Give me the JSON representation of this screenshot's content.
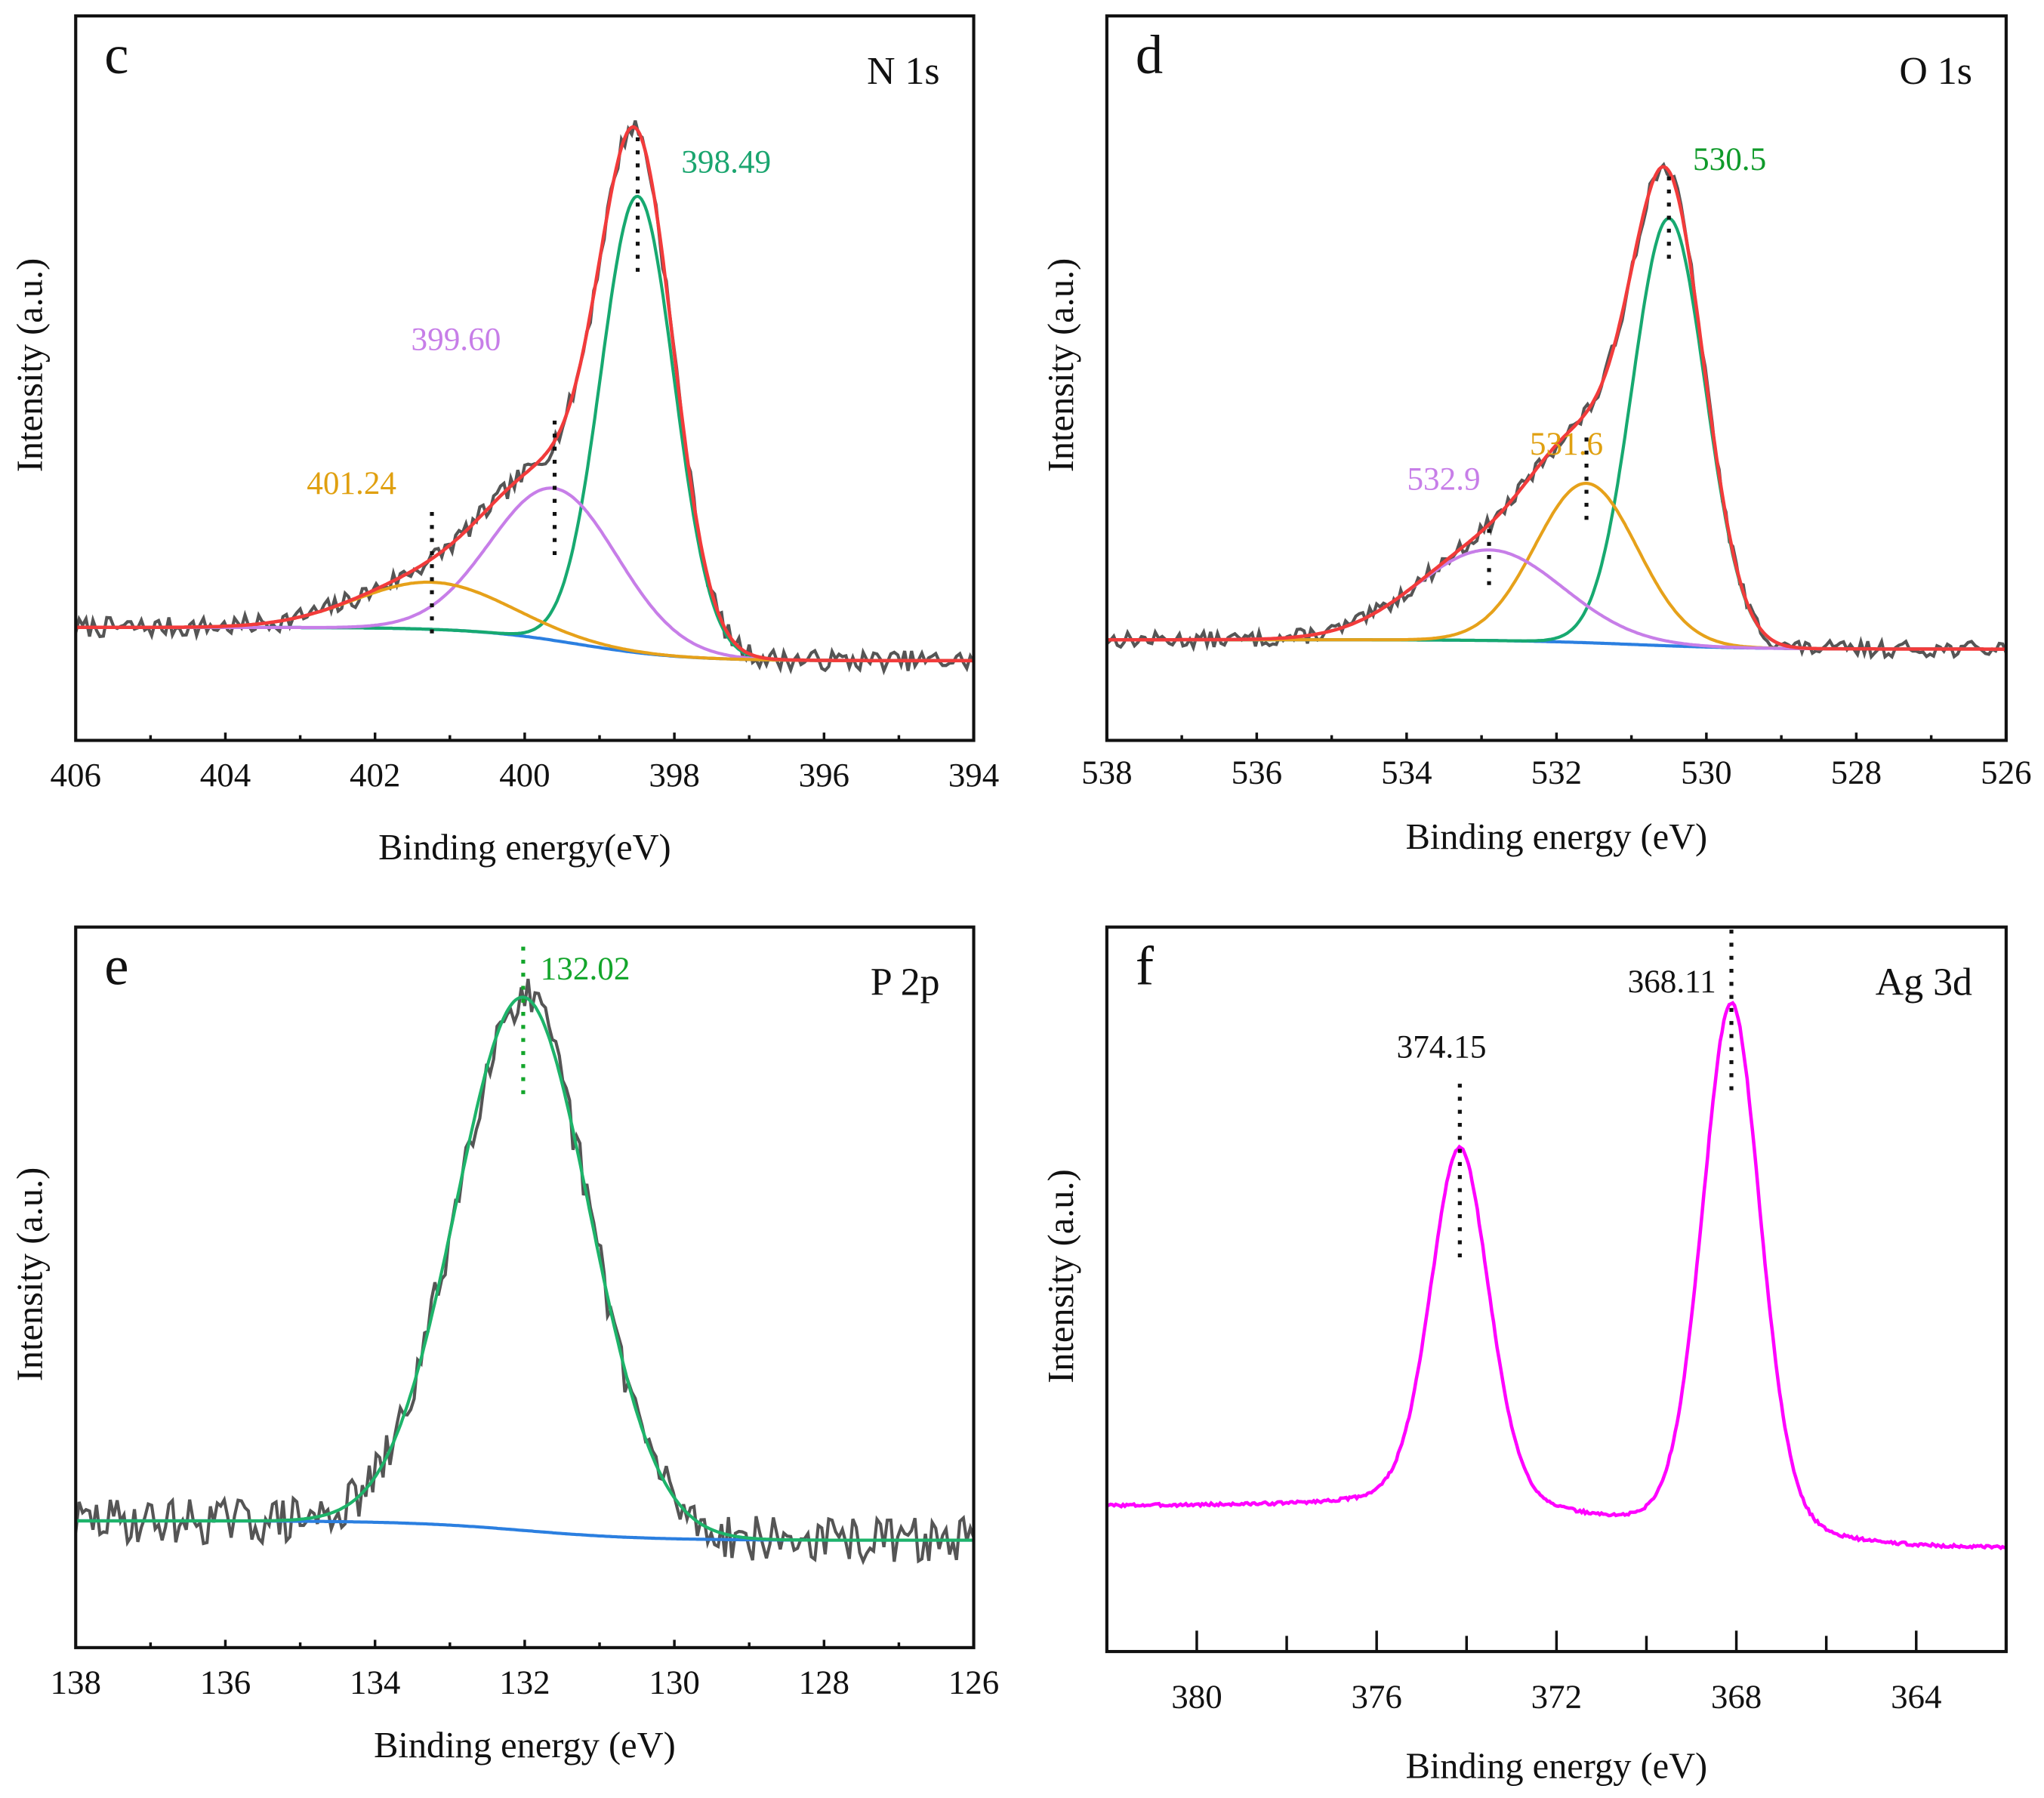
{
  "chart_data": [
    {
      "type": "line",
      "panel": "c",
      "title": "N 1s",
      "xlabel": "Binding energy(eV)",
      "ylabel": "Intensity (a.u.)",
      "xlim": [
        406,
        394
      ],
      "ylim": [
        0,
        100
      ],
      "xticks": [
        406,
        404,
        402,
        400,
        398,
        396,
        394
      ],
      "minor_step": 1,
      "raw": {
        "color": "#555555",
        "noise": 1.4,
        "seed": 7
      },
      "envelope": {
        "color": "#f23b3b"
      },
      "background": {
        "color": "#2b7fe0",
        "left": 15.6,
        "right": 11.0,
        "center": 399.3,
        "width": 0.7
      },
      "components": [
        {
          "center": 398.49,
          "amplitude": 63,
          "fwhm": 1.15,
          "color": "#17a970",
          "label": "398.49",
          "label_color": "#1aa56f"
        },
        {
          "center": 399.6,
          "amplitude": 21,
          "fwhm": 2.0,
          "color": "#c77ee8",
          "label": "399.60",
          "label_color": "#c77ee8"
        },
        {
          "center": 401.24,
          "amplitude": 6.5,
          "fwhm": 2.4,
          "color": "#e6a11a",
          "label": "401.24",
          "label_color": "#e0a010"
        }
      ]
    },
    {
      "type": "line",
      "panel": "d",
      "title": "O 1s",
      "xlabel": "Binding energy (eV)",
      "ylabel": "Intensity (a.u.)",
      "xlim": [
        538,
        526
      ],
      "ylim": [
        0,
        100
      ],
      "xticks": [
        538,
        536,
        534,
        532,
        530,
        528,
        526
      ],
      "minor_step": 1,
      "raw": {
        "color": "#555555",
        "noise": 1.1,
        "seed": 13
      },
      "envelope": {
        "color": "#f23b3b"
      },
      "background": {
        "color": "#2b7fe0",
        "left": 13.9,
        "right": 12.6,
        "center": 531.0,
        "width": 0.8
      },
      "components": [
        {
          "center": 530.5,
          "amplitude": 59,
          "fwhm": 1.15,
          "color": "#17a970",
          "label": "530.5",
          "label_color": "#0f9a2a"
        },
        {
          "center": 531.6,
          "amplitude": 22,
          "fwhm": 1.6,
          "color": "#e6a11a",
          "label": "531.6",
          "label_color": "#e0a010"
        },
        {
          "center": 532.9,
          "amplitude": 12.5,
          "fwhm": 2.3,
          "color": "#c77ee8",
          "label": "532.9",
          "label_color": "#c77ee8"
        }
      ]
    },
    {
      "type": "line",
      "panel": "e",
      "title": "P 2p",
      "xlabel": "Binding energy (eV)",
      "ylabel": "Intensity (a.u.)",
      "xlim": [
        138,
        126
      ],
      "ylim": [
        0,
        100
      ],
      "xticks": [
        138,
        136,
        134,
        132,
        130,
        128,
        126
      ],
      "minor_step": 1,
      "raw": {
        "color": "#555555",
        "noise": 3.2,
        "seed": 29
      },
      "envelope": null,
      "background": {
        "color": "#2b7fe0",
        "left": 17.6,
        "right": 14.9,
        "center": 132.0,
        "width": 0.8
      },
      "components": [
        {
          "center": 132.02,
          "amplitude": 74,
          "fwhm": 2.1,
          "color": "#1db46a",
          "label": "132.02",
          "label_color": "#13a52b"
        }
      ]
    },
    {
      "type": "line",
      "panel": "f",
      "title": "Ag 3d",
      "xlabel": "Binding energy (eV)",
      "ylabel": "Intensity (a.u.)",
      "xlim": [
        382,
        362
      ],
      "ylim": [
        0,
        100
      ],
      "xticks": [
        380,
        376,
        372,
        368,
        364
      ],
      "minor_step": 2,
      "raw": null,
      "envelope": null,
      "spectrum": {
        "color": "#ff00ff"
      },
      "background": {
        "left": 20.0,
        "right": 14.0,
        "center": 371.0,
        "width": 1.6
      },
      "components": [
        {
          "center": 374.15,
          "amplitude": 50,
          "fwhm": 1.55,
          "label": "374.15",
          "label_color": "#111111"
        },
        {
          "center": 368.11,
          "amplitude": 74.5,
          "fwhm": 1.55,
          "label": "368.11",
          "label_color": "#111111"
        }
      ]
    }
  ]
}
